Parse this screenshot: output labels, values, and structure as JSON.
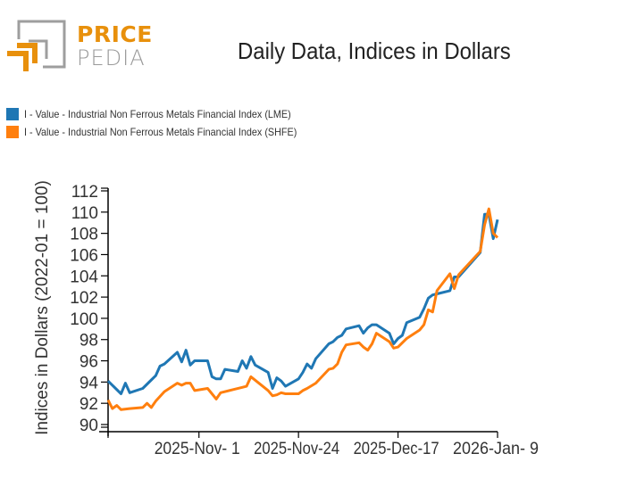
{
  "logo": {
    "top": "PRICE",
    "bottom": "PEDIA"
  },
  "chart_data": {
    "type": "line",
    "title": "Daily Data, Indices in Dollars",
    "xlabel": "",
    "ylabel": "Indices in Dollars (2022-01 = 100)",
    "ylim": [
      90,
      112
    ],
    "yticks": [
      90,
      92,
      94,
      96,
      98,
      100,
      102,
      104,
      106,
      108,
      110,
      112
    ],
    "xlim": [
      "2025-10-11",
      "2026-01-09"
    ],
    "xticks": [
      {
        "date": "2025-11-01",
        "label": "2025-Nov- 1"
      },
      {
        "date": "2025-11-24",
        "label": "2025-Nov-24"
      },
      {
        "date": "2025-12-17",
        "label": "2025-Dec-17"
      },
      {
        "date": "2026-01-09",
        "label": "2026-Jan- 9"
      }
    ],
    "grid": false,
    "legend_position": "top-left",
    "series": [
      {
        "name": "I - Value - Industrial Non Ferrous Metals Financial Index (LME)",
        "color": "#1f77b4",
        "points": [
          [
            "2025-10-11",
            94.1
          ],
          [
            "2025-10-12",
            93.7
          ],
          [
            "2025-10-14",
            92.9
          ],
          [
            "2025-10-15",
            93.9
          ],
          [
            "2025-10-16",
            93.0
          ],
          [
            "2025-10-19",
            93.4
          ],
          [
            "2025-10-21",
            94.2
          ],
          [
            "2025-10-22",
            94.6
          ],
          [
            "2025-10-23",
            95.5
          ],
          [
            "2025-10-24",
            95.7
          ],
          [
            "2025-10-27",
            96.8
          ],
          [
            "2025-10-28",
            95.9
          ],
          [
            "2025-10-29",
            97.0
          ],
          [
            "2025-10-30",
            95.6
          ],
          [
            "2025-10-31",
            96.0
          ],
          [
            "2025-11-03",
            96.0
          ],
          [
            "2025-11-04",
            94.5
          ],
          [
            "2025-11-05",
            94.3
          ],
          [
            "2025-11-06",
            94.3
          ],
          [
            "2025-11-07",
            95.2
          ],
          [
            "2025-11-10",
            95.0
          ],
          [
            "2025-11-11",
            96.0
          ],
          [
            "2025-11-12",
            95.3
          ],
          [
            "2025-11-13",
            96.4
          ],
          [
            "2025-11-14",
            95.6
          ],
          [
            "2025-11-17",
            94.9
          ],
          [
            "2025-11-18",
            93.4
          ],
          [
            "2025-11-19",
            94.4
          ],
          [
            "2025-11-20",
            94.1
          ],
          [
            "2025-11-21",
            93.6
          ],
          [
            "2025-11-24",
            94.3
          ],
          [
            "2025-11-25",
            94.9
          ],
          [
            "2025-11-26",
            95.7
          ],
          [
            "2025-11-27",
            95.3
          ],
          [
            "2025-11-28",
            96.2
          ],
          [
            "2025-12-01",
            97.6
          ],
          [
            "2025-12-02",
            97.8
          ],
          [
            "2025-12-03",
            98.2
          ],
          [
            "2025-12-04",
            98.4
          ],
          [
            "2025-12-05",
            99.0
          ],
          [
            "2025-12-08",
            99.3
          ],
          [
            "2025-12-09",
            98.6
          ],
          [
            "2025-12-10",
            99.1
          ],
          [
            "2025-12-11",
            99.4
          ],
          [
            "2025-12-12",
            99.4
          ],
          [
            "2025-12-15",
            98.6
          ],
          [
            "2025-12-16",
            97.6
          ],
          [
            "2025-12-17",
            98.1
          ],
          [
            "2025-12-18",
            98.4
          ],
          [
            "2025-12-19",
            99.6
          ],
          [
            "2025-12-22",
            100.1
          ],
          [
            "2025-12-23",
            100.9
          ],
          [
            "2025-12-24",
            101.9
          ],
          [
            "2025-12-25",
            102.2
          ],
          [
            "2025-12-26",
            102.3
          ],
          [
            "2025-12-29",
            102.6
          ],
          [
            "2025-12-30",
            103.9
          ],
          [
            "2025-12-31",
            103.9
          ],
          [
            "2026-01-05",
            106.2
          ],
          [
            "2026-01-06",
            109.8
          ],
          [
            "2026-01-07",
            109.8
          ],
          [
            "2026-01-08",
            107.5
          ],
          [
            "2026-01-09",
            109.3
          ]
        ]
      },
      {
        "name": "I - Value - Industrial Non Ferrous Metals Financial Index (SHFE)",
        "color": "#ff7f0e",
        "points": [
          [
            "2025-10-11",
            92.3
          ],
          [
            "2025-10-12",
            91.5
          ],
          [
            "2025-10-13",
            91.8
          ],
          [
            "2025-10-14",
            91.4
          ],
          [
            "2025-10-16",
            91.5
          ],
          [
            "2025-10-19",
            91.6
          ],
          [
            "2025-10-20",
            92.0
          ],
          [
            "2025-10-21",
            91.6
          ],
          [
            "2025-10-22",
            92.2
          ],
          [
            "2025-10-24",
            93.1
          ],
          [
            "2025-10-27",
            93.9
          ],
          [
            "2025-10-28",
            93.7
          ],
          [
            "2025-10-29",
            93.9
          ],
          [
            "2025-10-30",
            93.9
          ],
          [
            "2025-10-31",
            93.2
          ],
          [
            "2025-11-03",
            93.4
          ],
          [
            "2025-11-04",
            92.9
          ],
          [
            "2025-11-05",
            92.4
          ],
          [
            "2025-11-06",
            93.0
          ],
          [
            "2025-11-09",
            93.3
          ],
          [
            "2025-11-11",
            93.5
          ],
          [
            "2025-11-12",
            93.6
          ],
          [
            "2025-11-13",
            94.5
          ],
          [
            "2025-11-17",
            93.2
          ],
          [
            "2025-11-18",
            92.7
          ],
          [
            "2025-11-19",
            92.8
          ],
          [
            "2025-11-20",
            93.0
          ],
          [
            "2025-11-21",
            92.9
          ],
          [
            "2025-11-24",
            92.9
          ],
          [
            "2025-11-25",
            93.2
          ],
          [
            "2025-11-26",
            93.4
          ],
          [
            "2025-11-28",
            93.9
          ],
          [
            "2025-12-01",
            95.2
          ],
          [
            "2025-12-02",
            95.3
          ],
          [
            "2025-12-03",
            95.7
          ],
          [
            "2025-12-04",
            96.8
          ],
          [
            "2025-12-05",
            97.5
          ],
          [
            "2025-12-08",
            97.7
          ],
          [
            "2025-12-09",
            97.3
          ],
          [
            "2025-12-10",
            97.0
          ],
          [
            "2025-12-11",
            97.6
          ],
          [
            "2025-12-12",
            98.6
          ],
          [
            "2025-12-15",
            97.8
          ],
          [
            "2025-12-16",
            97.2
          ],
          [
            "2025-12-17",
            97.3
          ],
          [
            "2025-12-19",
            98.1
          ],
          [
            "2025-12-22",
            98.9
          ],
          [
            "2025-12-23",
            99.4
          ],
          [
            "2025-12-24",
            100.8
          ],
          [
            "2025-12-25",
            100.6
          ],
          [
            "2025-12-26",
            102.6
          ],
          [
            "2025-12-29",
            104.2
          ],
          [
            "2025-12-30",
            102.8
          ],
          [
            "2025-12-31",
            104.1
          ],
          [
            "2026-01-05",
            106.3
          ],
          [
            "2026-01-06",
            108.8
          ],
          [
            "2026-01-07",
            110.3
          ],
          [
            "2026-01-08",
            108.0
          ],
          [
            "2026-01-09",
            107.6
          ]
        ]
      }
    ]
  }
}
